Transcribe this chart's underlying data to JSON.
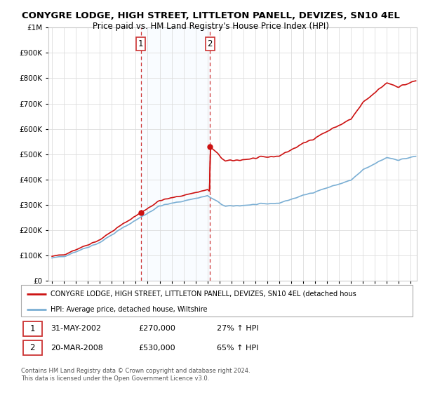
{
  "title": "CONYGRE LODGE, HIGH STREET, LITTLETON PANELL, DEVIZES, SN10 4EL",
  "subtitle": "Price paid vs. HM Land Registry's House Price Index (HPI)",
  "legend_line1": "CONYGRE LODGE, HIGH STREET, LITTLETON PANELL, DEVIZES, SN10 4EL (detached hous",
  "legend_line2": "HPI: Average price, detached house, Wiltshire",
  "footer1": "Contains HM Land Registry data © Crown copyright and database right 2024.",
  "footer2": "This data is licensed under the Open Government Licence v3.0.",
  "sale1_date": "31-MAY-2002",
  "sale1_price": "£270,000",
  "sale1_hpi": "27% ↑ HPI",
  "sale2_date": "20-MAR-2008",
  "sale2_price": "£530,000",
  "sale2_hpi": "65% ↑ HPI",
  "sale1_x": 2002.417,
  "sale1_y": 270000,
  "sale2_x": 2008.208,
  "sale2_y": 530000,
  "hpi_color": "#7bafd4",
  "price_color": "#cc1111",
  "vline_color": "#cc3333",
  "shade_color": "#ddeeff",
  "ylim": [
    0,
    1000000
  ],
  "xlim_start": 1994.7,
  "xlim_end": 2025.5,
  "bg_color": "#ffffff",
  "grid_color": "#dddddd",
  "title_fontsize": 9.5,
  "subtitle_fontsize": 8.5
}
